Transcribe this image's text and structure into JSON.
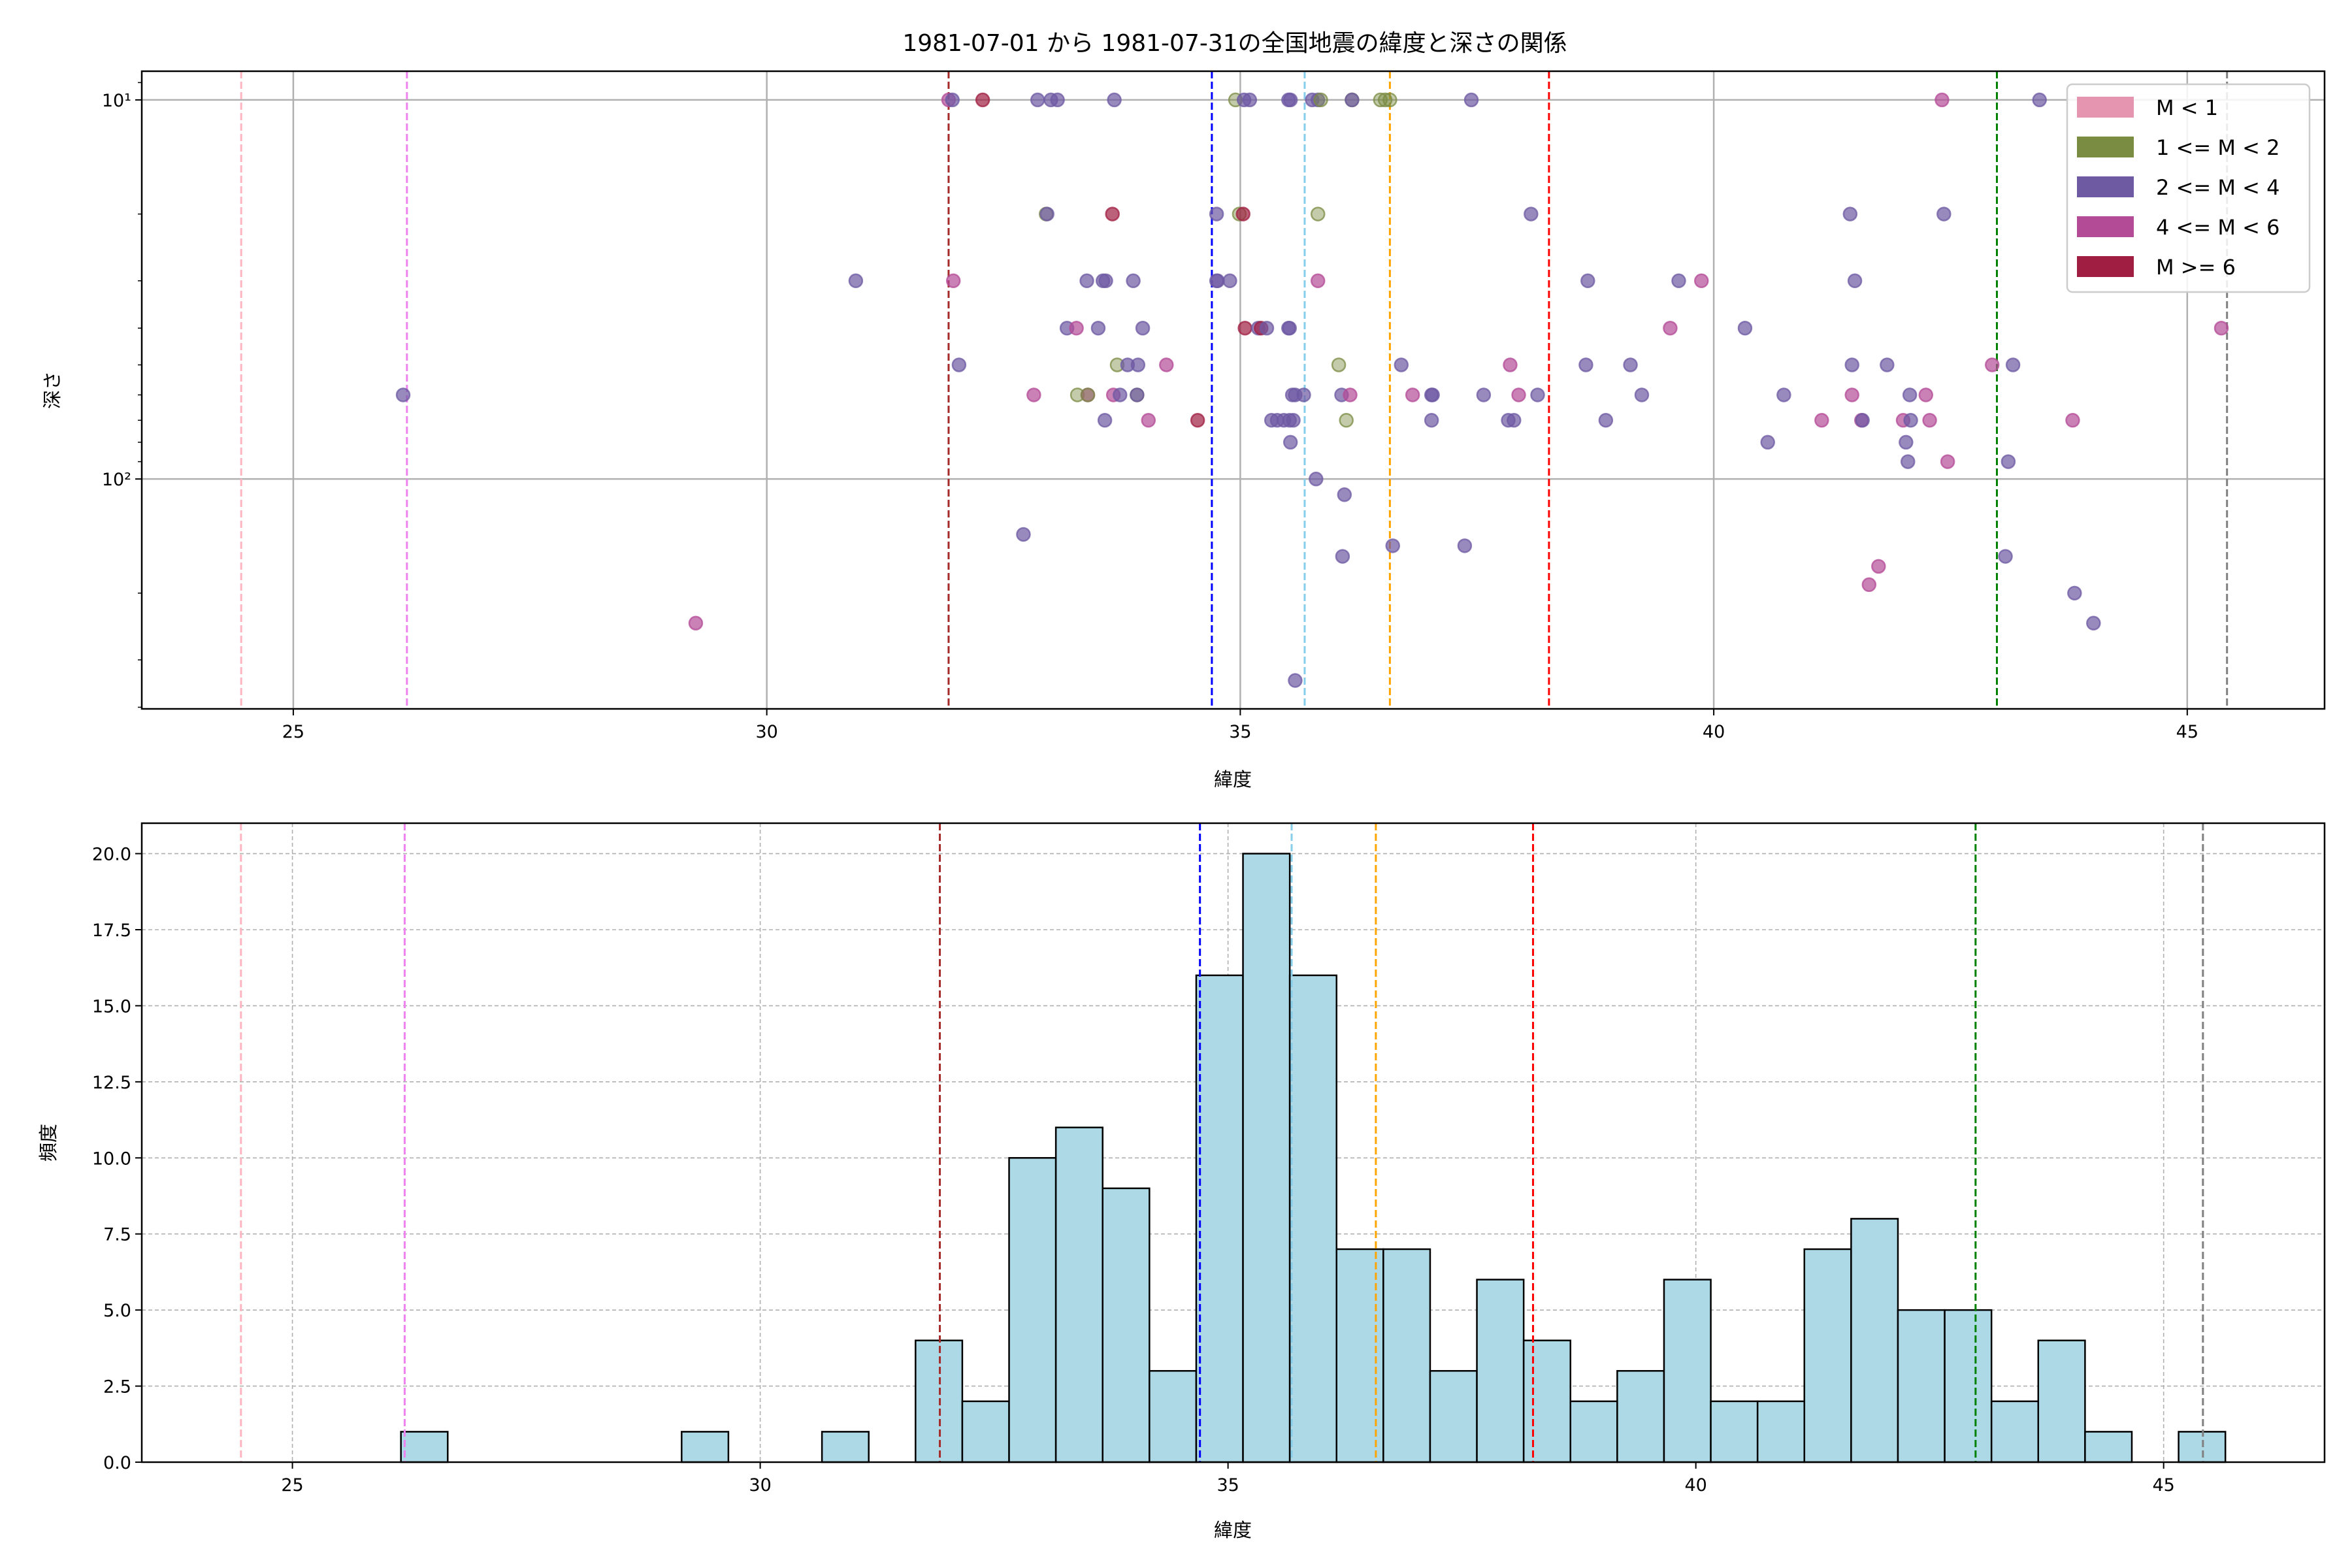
{
  "chart_data": [
    {
      "type": "scatter",
      "title": "1981-07-01 から 1981-07-31の全国地震の緯度と深さの関係",
      "xlabel": "緯度",
      "ylabel": "深さ",
      "xlim": [
        23.4,
        46.45
      ],
      "ylim": [
        8.4,
        404
      ],
      "yscale": "log",
      "y_inverted": true,
      "grid": true,
      "xticks": [
        25,
        30,
        35,
        40,
        45
      ],
      "xtick_labels": [
        "25",
        "30",
        "35",
        "40",
        "45"
      ],
      "yticks": [
        10,
        100
      ],
      "ytick_labels": [
        "10¹",
        "10²"
      ],
      "legend_position": "top-right",
      "categories": [
        {
          "label": "M < 1",
          "color": "#e595b0"
        },
        {
          "label": "1 <= M < 2",
          "color": "#7a8b42"
        },
        {
          "label": "2 <= M < 4",
          "color": "#6e59a3"
        },
        {
          "label": "4 <= M < 6",
          "color": "#b44b97"
        },
        {
          "label": "M >= 6",
          "color": "#a01e42"
        }
      ],
      "points_format": [
        "latitude",
        "depth",
        "category_index"
      ],
      "points": [
        [
          31.92,
          10,
          3
        ],
        [
          31.96,
          10,
          2
        ],
        [
          32.28,
          10,
          4
        ],
        [
          32.86,
          10,
          2
        ],
        [
          33.0,
          10,
          2
        ],
        [
          33.07,
          10,
          2
        ],
        [
          33.67,
          10,
          2
        ],
        [
          34.95,
          10,
          1
        ],
        [
          35.04,
          10,
          2
        ],
        [
          35.1,
          10,
          2
        ],
        [
          35.51,
          10,
          2
        ],
        [
          35.53,
          10,
          2
        ],
        [
          35.76,
          10,
          2
        ],
        [
          35.82,
          10,
          2
        ],
        [
          35.85,
          10,
          1
        ],
        [
          36.18,
          10,
          1
        ],
        [
          36.18,
          10,
          2
        ],
        [
          36.48,
          10,
          1
        ],
        [
          36.53,
          10,
          1
        ],
        [
          36.58,
          10,
          1
        ],
        [
          37.44,
          10,
          2
        ],
        [
          42.41,
          10,
          3
        ],
        [
          43.44,
          10,
          2
        ],
        [
          32.95,
          20,
          1
        ],
        [
          32.96,
          20,
          2
        ],
        [
          33.65,
          20,
          4
        ],
        [
          34.75,
          20,
          2
        ],
        [
          34.99,
          20,
          1
        ],
        [
          35.03,
          20,
          4
        ],
        [
          35.82,
          20,
          1
        ],
        [
          38.07,
          20,
          2
        ],
        [
          41.44,
          20,
          2
        ],
        [
          42.43,
          20,
          2
        ],
        [
          30.94,
          30,
          2
        ],
        [
          31.97,
          30,
          3
        ],
        [
          33.38,
          30,
          2
        ],
        [
          33.55,
          30,
          2
        ],
        [
          33.58,
          30,
          2
        ],
        [
          33.87,
          30,
          2
        ],
        [
          34.75,
          30,
          2
        ],
        [
          34.76,
          30,
          2
        ],
        [
          34.89,
          30,
          2
        ],
        [
          35.82,
          30,
          3
        ],
        [
          38.67,
          30,
          2
        ],
        [
          39.63,
          30,
          2
        ],
        [
          39.87,
          30,
          3
        ],
        [
          41.49,
          30,
          2
        ],
        [
          33.17,
          40,
          2
        ],
        [
          33.27,
          40,
          3
        ],
        [
          33.5,
          40,
          2
        ],
        [
          33.97,
          40,
          2
        ],
        [
          35.05,
          40,
          4
        ],
        [
          35.19,
          40,
          2
        ],
        [
          35.22,
          40,
          4
        ],
        [
          35.28,
          40,
          2
        ],
        [
          35.51,
          40,
          2
        ],
        [
          35.52,
          40,
          2
        ],
        [
          39.54,
          40,
          3
        ],
        [
          40.33,
          40,
          2
        ],
        [
          45.36,
          40,
          3
        ],
        [
          32.03,
          50,
          2
        ],
        [
          33.7,
          50,
          1
        ],
        [
          33.81,
          50,
          2
        ],
        [
          33.92,
          50,
          2
        ],
        [
          34.22,
          50,
          3
        ],
        [
          36.04,
          50,
          1
        ],
        [
          36.7,
          50,
          2
        ],
        [
          37.85,
          50,
          3
        ],
        [
          38.65,
          50,
          2
        ],
        [
          39.12,
          50,
          2
        ],
        [
          41.46,
          50,
          2
        ],
        [
          41.83,
          50,
          2
        ],
        [
          42.94,
          50,
          3
        ],
        [
          43.16,
          50,
          2
        ],
        [
          26.16,
          60,
          2
        ],
        [
          32.82,
          60,
          3
        ],
        [
          33.28,
          60,
          1
        ],
        [
          33.39,
          60,
          3
        ],
        [
          33.39,
          60,
          1
        ],
        [
          33.66,
          60,
          3
        ],
        [
          33.73,
          60,
          2
        ],
        [
          33.91,
          60,
          1
        ],
        [
          33.91,
          60,
          2
        ],
        [
          35.55,
          60,
          2
        ],
        [
          35.58,
          60,
          2
        ],
        [
          35.67,
          60,
          2
        ],
        [
          36.07,
          60,
          2
        ],
        [
          36.16,
          60,
          3
        ],
        [
          36.82,
          60,
          3
        ],
        [
          37.02,
          60,
          2
        ],
        [
          37.03,
          60,
          2
        ],
        [
          37.57,
          60,
          2
        ],
        [
          37.94,
          60,
          3
        ],
        [
          38.14,
          60,
          2
        ],
        [
          39.24,
          60,
          2
        ],
        [
          40.74,
          60,
          2
        ],
        [
          41.46,
          60,
          3
        ],
        [
          42.07,
          60,
          2
        ],
        [
          42.24,
          60,
          3
        ],
        [
          33.57,
          70,
          2
        ],
        [
          34.03,
          70,
          3
        ],
        [
          34.55,
          70,
          4
        ],
        [
          35.33,
          70,
          2
        ],
        [
          35.39,
          70,
          2
        ],
        [
          35.46,
          70,
          2
        ],
        [
          35.52,
          70,
          2
        ],
        [
          35.56,
          70,
          2
        ],
        [
          36.12,
          70,
          1
        ],
        [
          37.02,
          70,
          2
        ],
        [
          37.83,
          70,
          2
        ],
        [
          37.89,
          70,
          2
        ],
        [
          38.86,
          70,
          2
        ],
        [
          41.14,
          70,
          3
        ],
        [
          41.56,
          70,
          3
        ],
        [
          41.57,
          70,
          2
        ],
        [
          42.0,
          70,
          3
        ],
        [
          42.08,
          70,
          2
        ],
        [
          42.28,
          70,
          3
        ],
        [
          43.79,
          70,
          3
        ],
        [
          35.53,
          80,
          2
        ],
        [
          40.57,
          80,
          2
        ],
        [
          42.03,
          80,
          2
        ],
        [
          42.05,
          90,
          2
        ],
        [
          42.47,
          90,
          3
        ],
        [
          43.11,
          90,
          2
        ],
        [
          35.8,
          100,
          2
        ],
        [
          36.1,
          110,
          2
        ],
        [
          32.71,
          140,
          2
        ],
        [
          36.61,
          150,
          2
        ],
        [
          37.37,
          150,
          2
        ],
        [
          36.08,
          160,
          2
        ],
        [
          43.08,
          160,
          2
        ],
        [
          41.74,
          170,
          3
        ],
        [
          41.64,
          190,
          3
        ],
        [
          43.81,
          200,
          2
        ],
        [
          44.01,
          240,
          2
        ],
        [
          29.25,
          240,
          3
        ],
        [
          35.58,
          340,
          2
        ]
      ],
      "reference_lines": [
        {
          "x": 24.45,
          "color": "#ffb6c1"
        },
        {
          "x": 26.2,
          "color": "#ee82ee"
        },
        {
          "x": 31.92,
          "color": "#a52a2a"
        },
        {
          "x": 34.7,
          "color": "#0000ff"
        },
        {
          "x": 35.68,
          "color": "#87ceeb"
        },
        {
          "x": 36.58,
          "color": "#ffa500"
        },
        {
          "x": 38.26,
          "color": "#ff0000"
        },
        {
          "x": 42.99,
          "color": "#008000"
        },
        {
          "x": 45.42,
          "color": "#808080"
        }
      ]
    },
    {
      "type": "bar",
      "subtype": "histogram",
      "xlabel": "緯度",
      "ylabel": "頻度",
      "xlim": [
        23.39,
        46.72
      ],
      "ylim": [
        0,
        21
      ],
      "grid": true,
      "bar_color": "#add8e6",
      "bin_start": 26.16,
      "bin_width": 0.5,
      "counts": [
        1,
        0,
        0,
        0,
        0,
        0,
        1,
        0,
        0,
        1,
        0,
        4,
        2,
        10,
        11,
        9,
        3,
        16,
        20,
        16,
        7,
        7,
        3,
        6,
        4,
        2,
        3,
        6,
        2,
        2,
        7,
        8,
        5,
        5,
        2,
        4,
        1,
        0,
        1
      ],
      "xticks": [
        25,
        30,
        35,
        40,
        45
      ],
      "xtick_labels": [
        "25",
        "30",
        "35",
        "40",
        "45"
      ],
      "yticks": [
        0,
        2.5,
        5,
        7.5,
        10,
        12.5,
        15,
        17.5,
        20
      ],
      "ytick_labels": [
        "0.0",
        "2.5",
        "5.0",
        "7.5",
        "10.0",
        "12.5",
        "15.0",
        "17.5",
        "20.0"
      ],
      "reference_lines": [
        {
          "x": 24.45,
          "color": "#ffb6c1"
        },
        {
          "x": 26.2,
          "color": "#ee82ee"
        },
        {
          "x": 31.92,
          "color": "#a52a2a"
        },
        {
          "x": 34.7,
          "color": "#0000ff"
        },
        {
          "x": 35.68,
          "color": "#87ceeb"
        },
        {
          "x": 36.58,
          "color": "#ffa500"
        },
        {
          "x": 38.26,
          "color": "#ff0000"
        },
        {
          "x": 42.99,
          "color": "#008000"
        },
        {
          "x": 45.42,
          "color": "#808080"
        }
      ]
    }
  ]
}
